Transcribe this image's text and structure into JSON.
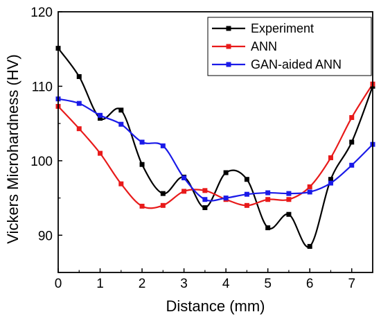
{
  "chart_data": {
    "type": "line",
    "title": "",
    "xlabel": "Distance (mm)",
    "ylabel": "Vickers Microhardness (HV)",
    "xlim": [
      0,
      7.5
    ],
    "ylim": [
      85,
      120
    ],
    "xticks": [
      0,
      1,
      2,
      3,
      4,
      5,
      6,
      7
    ],
    "yticks": [
      90,
      100,
      110,
      120
    ],
    "grid": false,
    "legend_position": "top-right",
    "series": [
      {
        "name": "Experiment",
        "color": "#000000",
        "x": [
          0,
          0.5,
          1,
          1.5,
          2,
          2.5,
          3,
          3.5,
          4,
          4.5,
          5,
          5.5,
          6,
          6.5,
          7,
          7.5
        ],
        "y": [
          115.1,
          111.3,
          105.7,
          106.8,
          99.5,
          95.6,
          97.8,
          93.7,
          98.4,
          97.5,
          91.0,
          92.8,
          88.5,
          97.5,
          102.5,
          110.0
        ]
      },
      {
        "name": "ANN",
        "color": "#e81a1a",
        "x": [
          0,
          0.5,
          1,
          1.5,
          2,
          2.5,
          3,
          3.5,
          4,
          4.5,
          5,
          5.5,
          6,
          6.5,
          7,
          7.5
        ],
        "y": [
          107.3,
          104.3,
          101.0,
          96.9,
          93.9,
          94.0,
          95.9,
          96.0,
          94.8,
          94.0,
          94.8,
          94.8,
          96.5,
          100.4,
          105.8,
          110.3
        ]
      },
      {
        "name": "GAN-aided ANN",
        "color": "#1a1ae8",
        "x": [
          0,
          0.5,
          1,
          1.5,
          2,
          2.5,
          3,
          3.5,
          4,
          4.5,
          5,
          5.5,
          6,
          6.5,
          7,
          7.5
        ],
        "y": [
          108.3,
          107.7,
          106.1,
          104.9,
          102.5,
          102.0,
          97.7,
          94.8,
          95.0,
          95.5,
          95.7,
          95.6,
          95.8,
          97.0,
          99.4,
          102.2
        ]
      }
    ]
  }
}
